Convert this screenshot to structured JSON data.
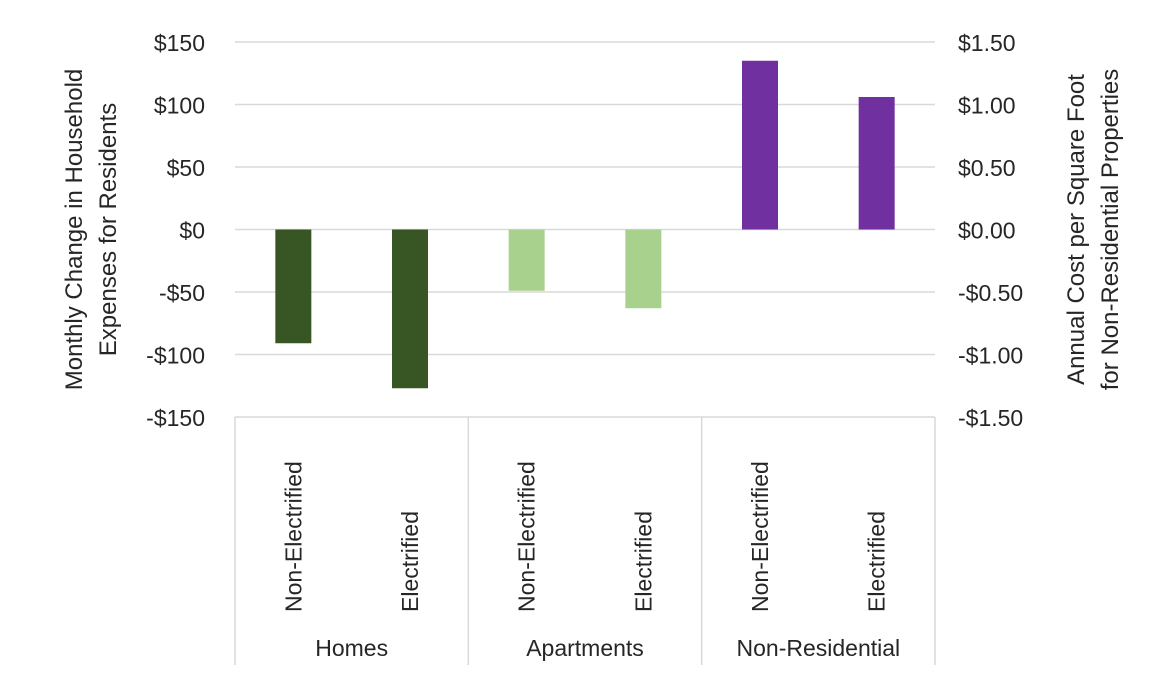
{
  "chart_data": {
    "type": "bar",
    "categories": [
      {
        "group": "Homes",
        "label": "Non-Electrified"
      },
      {
        "group": "Homes",
        "label": "Electrified"
      },
      {
        "group": "Apartments",
        "label": "Non-Electrified"
      },
      {
        "group": "Apartments",
        "label": "Electrified"
      },
      {
        "group": "Non-Residential",
        "label": "Non-Electrified"
      },
      {
        "group": "Non-Residential",
        "label": "Electrified"
      }
    ],
    "groups": [
      "Homes",
      "Apartments",
      "Non-Residential"
    ],
    "series": [
      {
        "axis": "left",
        "values": [
          -91,
          -127,
          -49,
          -63,
          null,
          null
        ],
        "colors": [
          "#375623",
          "#375623",
          "#a9d18e",
          "#a9d18e",
          null,
          null
        ]
      },
      {
        "axis": "right",
        "values": [
          null,
          null,
          null,
          null,
          1.35,
          1.06
        ],
        "colors": [
          null,
          null,
          null,
          null,
          "#7030a0",
          "#7030a0"
        ]
      }
    ],
    "ylabel": "Monthly Change in Household Expenses for Residents",
    "ylabel_lines": [
      "Monthly Change in Household",
      "Expenses for Residents"
    ],
    "y2label": "Annual Cost per Square Foot for Non-Residential Properties",
    "y2label_lines": [
      "Annual Cost per Square Foot",
      "for Non-Residential Properties"
    ],
    "ylim": [
      -150,
      150
    ],
    "y2lim": [
      -1.5,
      1.5
    ],
    "yticks": [
      "$150",
      "$100",
      "$50",
      "$0",
      "-$50",
      "-$100",
      "-$150"
    ],
    "y2ticks": [
      "$1.50",
      "$1.00",
      "$0.50",
      "$0.00",
      "-$0.50",
      "-$1.00",
      "-$1.50"
    ],
    "grid": true,
    "legend": "none"
  }
}
